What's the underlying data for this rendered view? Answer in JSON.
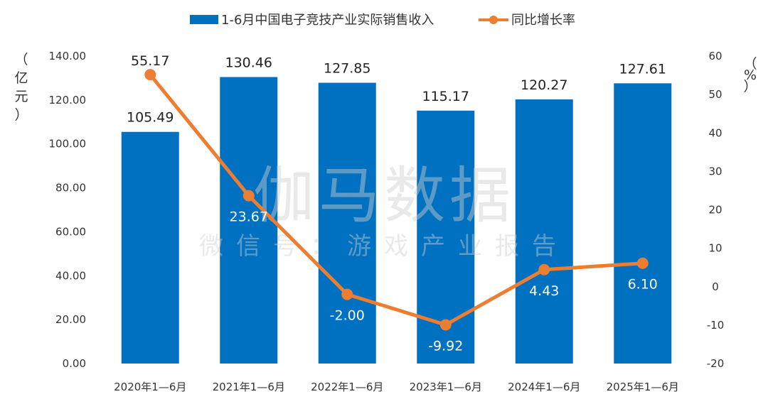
{
  "legend": {
    "bar_label": "1-6月中国电子竞技产业实际销售收入",
    "line_label": "同比增长率"
  },
  "axes": {
    "left_unit_chars": [
      "（",
      "亿",
      "元",
      "）"
    ],
    "right_unit_chars": [
      "（",
      "%",
      "）"
    ]
  },
  "watermark": {
    "main": "伽马数据",
    "sub": "微信号：游戏产业报告"
  },
  "colors": {
    "bar": "#0070c0",
    "line": "#ed7d31",
    "axis_text": "#333333",
    "watermark": "#cfcfcf"
  },
  "chart_data": {
    "type": "bar",
    "categories": [
      "2020年1—6月",
      "2021年1—6月",
      "2022年1—6月",
      "2023年1—6月",
      "2024年1—6月",
      "2025年1—6月"
    ],
    "series": [
      {
        "name": "1-6月中国电子竞技产业实际销售收入",
        "type": "bar",
        "axis": "left",
        "values": [
          105.49,
          130.46,
          127.85,
          115.17,
          120.27,
          127.61
        ],
        "labels": [
          "105.49",
          "130.46",
          "127.85",
          "115.17",
          "120.27",
          "127.61"
        ]
      },
      {
        "name": "同比增长率",
        "type": "line",
        "axis": "right",
        "values": [
          55.17,
          23.67,
          -2.0,
          -9.92,
          4.43,
          6.1
        ],
        "labels": [
          "55.17",
          "23.67",
          "-2.00",
          "-9.92",
          "4.43",
          "6.10"
        ]
      }
    ],
    "y_left": {
      "min": 0,
      "max": 140,
      "ticks": [
        "0.00",
        "20.00",
        "40.00",
        "60.00",
        "80.00",
        "100.00",
        "120.00",
        "140.00"
      ]
    },
    "y_right": {
      "min": -20,
      "max": 60,
      "ticks": [
        "-20",
        "-10",
        "0",
        "10",
        "20",
        "30",
        "40",
        "50",
        "60"
      ]
    },
    "grid": false,
    "legend_position": "top"
  }
}
